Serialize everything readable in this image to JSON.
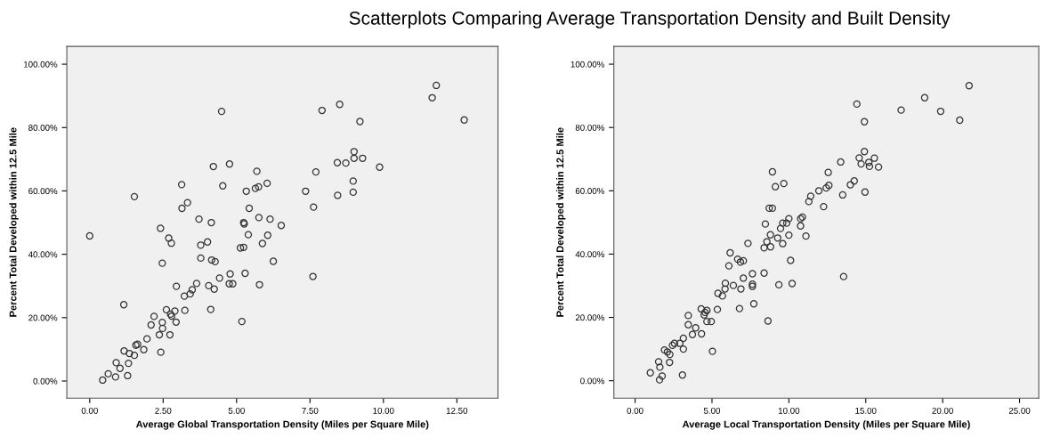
{
  "chart_data": [
    {
      "type": "scatter",
      "title": "Scatterplots Comparing Average Transportation Density and Built Density",
      "xlabel": "Average Global Transportation Density (Miles per Square Mile)",
      "ylabel": "Percent Total Developed within 12.5 Mile",
      "marker": "circle",
      "grid": false,
      "legend": false,
      "xlim": [
        -0.78,
        13.9
      ],
      "ylim": [
        -5.4,
        105.6
      ],
      "xticks": [
        {
          "value": 0,
          "label": "0.00"
        },
        {
          "value": 2.5,
          "label": "2.50"
        },
        {
          "value": 5,
          "label": "5.00"
        },
        {
          "value": 7.5,
          "label": "7.50"
        },
        {
          "value": 10,
          "label": "10.00"
        },
        {
          "value": 12.5,
          "label": "12.50"
        }
      ],
      "yticks": [
        {
          "value": 0,
          "label": "0.00%"
        },
        {
          "value": 20,
          "label": "20.00%"
        },
        {
          "value": 40,
          "label": "40.00%"
        },
        {
          "value": 60,
          "label": "60.00%"
        },
        {
          "value": 80,
          "label": "80.00%"
        },
        {
          "value": 100,
          "label": "100.00%"
        }
      ],
      "series": [
        {
          "color": "#333333",
          "x": [
            0,
            0.44,
            0.63,
            0.88,
            0.9,
            1.03,
            1.29,
            1.32,
            1.16,
            1.17,
            1.35,
            1.52,
            1.52,
            1.57,
            1.63,
            1.84,
            1.95,
            2.09,
            2.19,
            2.37,
            2.41,
            2.42,
            2.47,
            2.48,
            2.47,
            2.61,
            2.69,
            2.73,
            2.75,
            2.78,
            2.79,
            2.9,
            2.94,
            2.95,
            3.13,
            3.14,
            3.22,
            3.24,
            3.33,
            3.42,
            3.49,
            3.64,
            3.72,
            3.78,
            3.78,
            4.01,
            4.05,
            4.12,
            4.14,
            4.15,
            4.21,
            4.24,
            4.27,
            4.42,
            4.49,
            4.53,
            4.76,
            4.75,
            4.78,
            4.87,
            5.13,
            5.18,
            5.24,
            5.24,
            5.26,
            5.29,
            5.33,
            5.4,
            5.43,
            5.64,
            5.69,
            5.75,
            5.76,
            5.78,
            5.88,
            6.04,
            6.14,
            6.52,
            6.06,
            6.25,
            7.35,
            7.7,
            7.62,
            7.6,
            7.91,
            8.51,
            9.2,
            8.43,
            8.72,
            9.0,
            9.0,
            9.29,
            9.87,
            8.97,
            8.44,
            8.97,
            11.66,
            11.8,
            12.75
          ],
          "values": [
            45.8,
            0.3,
            2.3,
            1.3,
            5.8,
            4.0,
            1.7,
            5.6,
            24.1,
            9.5,
            8.7,
            8.1,
            58.2,
            11.3,
            11.6,
            9.9,
            13.3,
            17.7,
            20.4,
            14.6,
            48.2,
            9.1,
            18.5,
            16.6,
            37.2,
            22.5,
            45.1,
            14.6,
            21.1,
            43.5,
            20.5,
            22.1,
            18.6,
            29.9,
            62.0,
            54.5,
            26.8,
            22.3,
            56.3,
            27.5,
            28.8,
            30.8,
            51.1,
            42.9,
            38.8,
            43.9,
            30.1,
            22.6,
            50.0,
            38.2,
            67.7,
            29.0,
            37.7,
            32.5,
            85.1,
            61.6,
            68.5,
            30.7,
            33.8,
            30.7,
            42.0,
            18.8,
            42.2,
            50.0,
            49.6,
            34.0,
            59.9,
            46.2,
            54.5,
            60.8,
            66.2,
            61.3,
            51.6,
            30.4,
            43.4,
            62.4,
            51.1,
            49.1,
            46.0,
            37.8,
            59.9,
            66.0,
            54.9,
            33.0,
            85.4,
            87.3,
            81.9,
            68.9,
            68.8,
            72.4,
            70.3,
            70.3,
            67.5,
            63.1,
            58.6,
            59.6,
            89.4,
            93.3,
            82.4
          ]
        }
      ]
    },
    {
      "type": "scatter",
      "xlabel": "Average Local Transportation Density (Miles per Square Mile)",
      "ylabel": "Percent Total Developed within 12.5 Mile",
      "marker": "circle",
      "grid": false,
      "legend": false,
      "xlim": [
        -1.38,
        26.25
      ],
      "ylim": [
        -5.5,
        105.6
      ],
      "xticks": [
        {
          "value": 0,
          "label": "0.00"
        },
        {
          "value": 5,
          "label": "5.00"
        },
        {
          "value": 10,
          "label": "10.00"
        },
        {
          "value": 15,
          "label": "15.00"
        },
        {
          "value": 20,
          "label": "20.00"
        },
        {
          "value": 25,
          "label": "25.00"
        }
      ],
      "yticks": [
        {
          "value": 0,
          "label": "0.00%"
        },
        {
          "value": 20,
          "label": "20.00%"
        },
        {
          "value": 40,
          "label": "40.00%"
        },
        {
          "value": 60,
          "label": "60.00%"
        },
        {
          "value": 80,
          "label": "80.00%"
        },
        {
          "value": 100,
          "label": "100.00%"
        }
      ],
      "series": [
        {
          "color": "#333333",
          "x": [
            0.99,
            1.53,
            1.61,
            1.59,
            1.76,
            1.91,
            2.1,
            2.26,
            2.24,
            2.43,
            2.56,
            2.91,
            3.14,
            3.14,
            3.08,
            3.46,
            3.46,
            3.73,
            3.94,
            4.3,
            4.32,
            4.49,
            4.55,
            4.67,
            4.67,
            4.95,
            5.03,
            5.35,
            5.39,
            5.68,
            5.85,
            5.87,
            6.1,
            6.18,
            6.39,
            6.67,
            6.79,
            6.85,
            6.88,
            7.04,
            7.04,
            7.34,
            7.63,
            7.63,
            7.63,
            7.72,
            8.39,
            8.39,
            8.47,
            8.57,
            8.64,
            8.72,
            8.8,
            8.81,
            8.93,
            8.93,
            9.12,
            9.27,
            9.35,
            9.46,
            9.6,
            9.6,
            9.67,
            9.86,
            10.0,
            10.0,
            10.11,
            10.21,
            10.76,
            10.76,
            10.88,
            11.11,
            11.3,
            11.42,
            11.95,
            12.26,
            12.43,
            12.6,
            12.56,
            13.37,
            13.5,
            13.56,
            14.0,
            14.25,
            14.42,
            14.57,
            14.7,
            14.91,
            14.91,
            14.95,
            15.2,
            15.24,
            15.56,
            15.83,
            17.3,
            18.83,
            19.87,
            21.11,
            21.72
          ],
          "values": [
            2.5,
            6.0,
            4.3,
            0.3,
            1.5,
            9.7,
            9.1,
            8.3,
            5.8,
            11.2,
            11.8,
            11.8,
            13.4,
            10.0,
            1.8,
            20.6,
            17.7,
            14.6,
            16.7,
            22.7,
            14.8,
            20.8,
            21.6,
            22.2,
            18.7,
            18.7,
            9.3,
            22.5,
            27.6,
            26.8,
            29.0,
            30.8,
            36.3,
            40.4,
            30.1,
            38.4,
            22.8,
            37.5,
            29.0,
            37.9,
            32.4,
            43.4,
            33.8,
            30.5,
            29.8,
            24.3,
            42.0,
            34.0,
            49.5,
            43.9,
            18.9,
            54.5,
            46.1,
            42.3,
            54.5,
            66.0,
            61.3,
            45.1,
            30.3,
            48.1,
            43.3,
            49.8,
            62.3,
            49.8,
            51.2,
            46.0,
            38.0,
            30.7,
            48.9,
            51.2,
            51.7,
            45.7,
            56.6,
            58.3,
            60.0,
            55.0,
            60.9,
            61.7,
            65.8,
            69.1,
            58.7,
            32.9,
            61.9,
            63.1,
            87.4,
            70.4,
            68.5,
            81.8,
            72.4,
            59.6,
            69.0,
            67.7,
            70.3,
            67.5,
            85.5,
            89.4,
            85.1,
            82.3,
            93.2
          ]
        }
      ]
    }
  ]
}
